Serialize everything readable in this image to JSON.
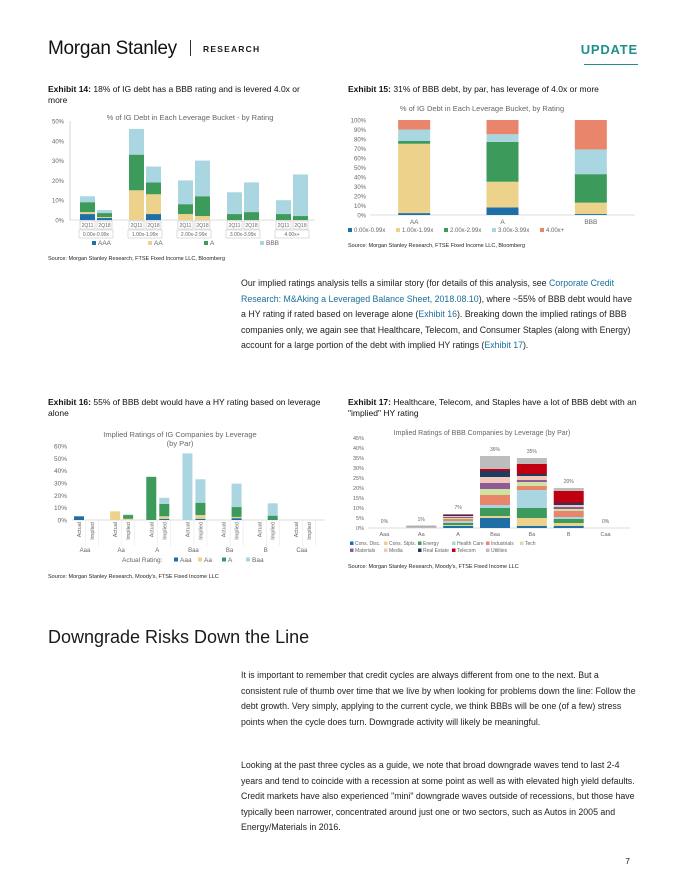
{
  "header": {
    "logo": "Morgan Stanley",
    "research": "RESEARCH",
    "update": "UPDATE"
  },
  "colors": {
    "navy": "#1e6fa8",
    "green": "#3c9b5a",
    "yellow": "#ecd28a",
    "lightblue": "#a9d6e0",
    "orange": "#e8856a",
    "teal": "#1f8f8a"
  },
  "exhibit14": {
    "label": "Exhibit 14:",
    "title": "18% of IG debt has a BBB rating and is levered 4.0x or more",
    "source": "Source: Morgan Stanley Research, FTSE Fixed Income LLC, Bloomberg"
  },
  "exhibit15": {
    "label": "Exhibit 15:",
    "title": "31% of BBB debt, by par, has leverage of 4.0x or more",
    "source": "Source: Morgan Stanley Research, FTSE Fixed Income LLC, Bloomberg"
  },
  "exhibit16": {
    "label": "Exhibit 16:",
    "title": "55% of BBB debt would have a HY rating based on leverage alone",
    "source": "Source: Morgan Stanley Research, Moody's, FTSE Fixed Income LLC"
  },
  "exhibit17": {
    "label": "Exhibit 17:",
    "title": "Healthcare, Telecom, and Staples have a lot of BBB debt with an \"implied\" HY rating",
    "source": "Source: Morgan Stanley Research, Moody's, FTSE Fixed Income LLC"
  },
  "para1": {
    "before": "Our implied ratings analysis tells a similar story (for details of this analysis, see ",
    "link1": "Corporate Credit Research: M&Aking a Leveraged Balance Sheet, 2018.08.10",
    "mid1": "), where ~55% of BBB debt would have a HY rating if rated based on leverage alone (",
    "link2": "Exhibit 16",
    "mid2": "). Breaking down the implied ratings of BBB companies only, we again see that Healthcare, Telecom, and Consumer Staples (along with Energy) account for a large portion of the debt with implied HY ratings (",
    "link3": "Exhibit 17",
    "after": ")."
  },
  "section_title": "Downgrade Risks Down the Line",
  "para2": "It is important to remember that credit cycles are always different from one to the next. But a consistent rule of thumb over time that we live by when looking for problems down the line: Follow the debt growth. Very simply, applying to the current cycle, we think BBBs will be one (of a few) stress points when the cycle does turn. Downgrade activity will likely be meaningful.",
  "para3": "Looking at the past three cycles as a guide, we note that broad downgrade waves tend to last 2-4 years and tend to coincide with a recession at some point as well as with elevated high yield defaults. Credit markets have also experienced \"mini\" downgrade waves outside of recessions, but those have typically been narrower, concentrated around just one or two sectors, such as Autos in 2005 and Energy/Materials in 2016.",
  "page_number": "7",
  "chart_data": [
    {
      "id": "exhibit14",
      "type": "bar",
      "stacked": true,
      "title": "% of IG Debt in Each Leverage Bucket - by Rating",
      "ylim": [
        0,
        50
      ],
      "yticks": [
        "0%",
        "10%",
        "20%",
        "30%",
        "40%",
        "50%"
      ],
      "groups": [
        "0.00x-0.99x",
        "1.00x-1.99x",
        "2.00x-2.99x",
        "3.00x-3.99x",
        "4.00x+"
      ],
      "periods": [
        "2Q11",
        "2Q18"
      ],
      "series": [
        {
          "name": "AAA",
          "color": "#1e6fa8",
          "values": [
            [
              3,
              1
            ],
            [
              0,
              3
            ],
            [
              0,
              0
            ],
            [
              0,
              0
            ],
            [
              0,
              0
            ]
          ]
        },
        {
          "name": "AA",
          "color": "#ecd28a",
          "values": [
            [
              1,
              0.5
            ],
            [
              15,
              10
            ],
            [
              3,
              2
            ],
            [
              0,
              0
            ],
            [
              0,
              0
            ]
          ]
        },
        {
          "name": "A",
          "color": "#3c9b5a",
          "values": [
            [
              5,
              2
            ],
            [
              18,
              6
            ],
            [
              5,
              10
            ],
            [
              3,
              4
            ],
            [
              3,
              2
            ]
          ]
        },
        {
          "name": "BBB",
          "color": "#a9d6e0",
          "values": [
            [
              3,
              1.5
            ],
            [
              13,
              8
            ],
            [
              12,
              18
            ],
            [
              11,
              15
            ],
            [
              7,
              21
            ]
          ]
        }
      ],
      "legend_position": "bottom"
    },
    {
      "id": "exhibit15",
      "type": "bar",
      "stacked": true,
      "title": "% of IG Debt in Each Leverage Bucket, by Rating",
      "ylim": [
        0,
        100
      ],
      "yticks": [
        "0%",
        "10%",
        "20%",
        "30%",
        "40%",
        "50%",
        "60%",
        "70%",
        "80%",
        "90%",
        "100%"
      ],
      "categories": [
        "AA",
        "A",
        "BBB"
      ],
      "series": [
        {
          "name": "0.00x-0.99x",
          "color": "#1e6fa8",
          "values": [
            2,
            8,
            1
          ]
        },
        {
          "name": "1.00x-1.99x",
          "color": "#ecd28a",
          "values": [
            73,
            27,
            12
          ]
        },
        {
          "name": "2.00x-2.99x",
          "color": "#3c9b5a",
          "values": [
            3,
            42,
            30
          ]
        },
        {
          "name": "3.00x-3.99x",
          "color": "#a9d6e0",
          "values": [
            12,
            8,
            26
          ]
        },
        {
          "name": "4.00x+",
          "color": "#e8856a",
          "values": [
            10,
            15,
            31
          ]
        }
      ],
      "legend_position": "bottom"
    },
    {
      "id": "exhibit16",
      "type": "bar",
      "stacked": true,
      "title": "Implied Ratings of IG Companies by Leverage (by Par)",
      "ylim": [
        0,
        60
      ],
      "yticks": [
        "0%",
        "10%",
        "20%",
        "30%",
        "40%",
        "50%",
        "60%"
      ],
      "groups": [
        "Aaa",
        "Aa",
        "A",
        "Baa",
        "Ba",
        "B",
        "Caa"
      ],
      "bar_labels": [
        "Actual",
        "Implied"
      ],
      "legend_title": "Actual Rating:",
      "series": [
        {
          "name": "Aaa",
          "color": "#1e6fa8",
          "values": [
            [
              3,
              0
            ],
            [
              0,
              0
            ],
            [
              0,
              1
            ],
            [
              0,
              1
            ],
            [
              0,
              1.5
            ],
            [
              0,
              0.5
            ],
            [
              0,
              0
            ]
          ]
        },
        {
          "name": "Aa",
          "color": "#ecd28a",
          "values": [
            [
              0,
              0
            ],
            [
              7,
              1
            ],
            [
              0,
              2
            ],
            [
              0,
              3
            ],
            [
              0,
              1
            ],
            [
              0,
              0
            ],
            [
              0,
              0
            ]
          ]
        },
        {
          "name": "A",
          "color": "#3c9b5a",
          "values": [
            [
              0,
              0
            ],
            [
              0,
              3
            ],
            [
              35,
              10
            ],
            [
              0,
              10
            ],
            [
              0,
              8
            ],
            [
              0,
              3
            ],
            [
              0,
              0
            ]
          ]
        },
        {
          "name": "Baa",
          "color": "#a9d6e0",
          "values": [
            [
              0,
              0
            ],
            [
              0,
              0.5
            ],
            [
              0,
              5
            ],
            [
              54,
              19
            ],
            [
              0,
              19
            ],
            [
              0,
              10
            ],
            [
              0,
              0
            ]
          ]
        }
      ],
      "legend_position": "bottom"
    },
    {
      "id": "exhibit17",
      "type": "bar",
      "stacked": true,
      "title": "Implied Ratings of BBB Companies by Leverage (by Par)",
      "ylim": [
        0,
        45
      ],
      "yticks": [
        "0%",
        "5%",
        "10%",
        "15%",
        "20%",
        "25%",
        "30%",
        "35%",
        "40%",
        "45%"
      ],
      "categories": [
        "Aaa",
        "Aa",
        "A",
        "Baa",
        "Ba",
        "B",
        "Caa"
      ],
      "totals": [
        "0%",
        "1%",
        "7%",
        "36%",
        "35%",
        "20%",
        "0%"
      ],
      "totals_values": [
        0,
        1,
        7,
        36,
        35,
        20,
        0
      ],
      "series": [
        {
          "name": "Cons. Disc.",
          "color": "#1e6fa8",
          "values": [
            0,
            0.1,
            1,
            5,
            1,
            1,
            0
          ]
        },
        {
          "name": "Cons. Stpls.",
          "color": "#ecd28a",
          "values": [
            0,
            0.1,
            0.5,
            1,
            4,
            1.5,
            0
          ]
        },
        {
          "name": "Energy",
          "color": "#3c9b5a",
          "values": [
            0,
            0.1,
            1,
            4,
            5,
            2,
            0
          ]
        },
        {
          "name": "Health Care",
          "color": "#a9d6e0",
          "values": [
            0,
            0.2,
            1,
            1.5,
            9,
            1,
            0
          ]
        },
        {
          "name": "Industrials",
          "color": "#e8856a",
          "values": [
            0,
            0.1,
            1,
            5,
            2,
            3,
            0
          ]
        },
        {
          "name": "Tech",
          "color": "#cfe3a0",
          "values": [
            0,
            0.1,
            0.5,
            3,
            2,
            1,
            0
          ]
        },
        {
          "name": "Materials",
          "color": "#8e5a9a",
          "values": [
            0,
            0.1,
            0.5,
            3,
            1,
            1,
            0
          ]
        },
        {
          "name": "Media",
          "color": "#f2c9b8",
          "values": [
            0,
            0.1,
            0.5,
            3,
            2,
            1,
            0
          ]
        },
        {
          "name": "Real Estate",
          "color": "#1d3c63",
          "values": [
            0,
            0.1,
            0.5,
            3,
            1,
            1,
            0
          ]
        },
        {
          "name": "Telecom",
          "color": "#c00010",
          "values": [
            0,
            0.1,
            0.3,
            1,
            5,
            6,
            0
          ]
        },
        {
          "name": "Utilities",
          "color": "#bdbdbd",
          "values": [
            0,
            0.1,
            0.2,
            6.5,
            3,
            1.5,
            0
          ]
        }
      ],
      "legend_position": "bottom"
    }
  ]
}
